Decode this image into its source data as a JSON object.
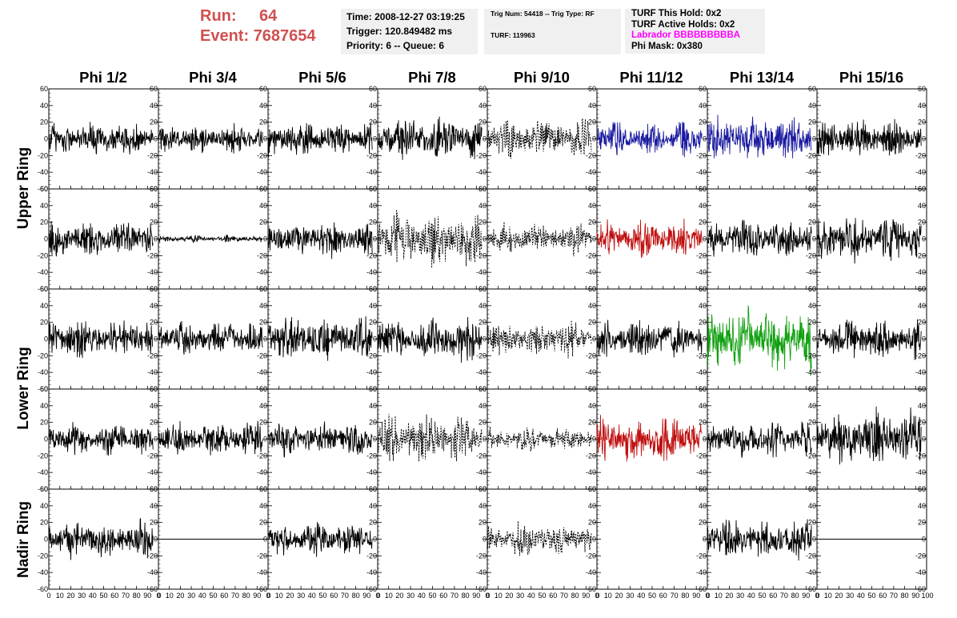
{
  "header": {
    "run_label": "Run:",
    "run_value": "64",
    "event_label": "Event:",
    "event_value": "7687654",
    "time": "Time: 2008-12-27 03:19:25",
    "trigger": "Trigger: 120.849482 ms",
    "priority": "Priority: 6 -- Queue: 6",
    "trig_num": "Trig Num: 54418 -- Trig Type: RF",
    "turf": "TURF: 119963",
    "turf_hold": "TURF This Hold: 0x2",
    "turf_active": "TURF Active Holds: 0x2",
    "labrador": "Labrador BBBBBBBBBA",
    "phi_mask": "Phi Mask: 0x380"
  },
  "colors": {
    "header_red": "#d05050",
    "labrador_magenta": "#ff00ff",
    "trace_black": "#000000",
    "trace_blue": "#1a1aa0",
    "trace_red": "#c01010",
    "trace_green": "#10a010"
  },
  "phi_columns": [
    "Phi 1/2",
    "Phi 3/4",
    "Phi 5/6",
    "Phi 7/8",
    "Phi 9/10",
    "Phi 11/12",
    "Phi 13/14",
    "Phi 15/16"
  ],
  "ring_labels": [
    {
      "label": "Upper Ring",
      "rows": [
        0,
        1
      ]
    },
    {
      "label": "Lower Ring",
      "rows": [
        2,
        3
      ]
    },
    {
      "label": "Nadir Ring",
      "rows": [
        4
      ]
    }
  ],
  "chart_data": {
    "type": "line",
    "title": "",
    "xlabel": "",
    "ylabel": "",
    "xlim": [
      0,
      100
    ],
    "ylim": [
      -60,
      60
    ],
    "y_ticks": [
      -60,
      -40,
      -20,
      0,
      20,
      40,
      60
    ],
    "x_ticks": [
      0,
      10,
      20,
      30,
      40,
      50,
      60,
      70,
      80,
      90
    ],
    "x_end_tick": 100,
    "grid": false,
    "trace_extent": [
      0,
      95
    ],
    "panels": [
      [
        {
          "style": "solid",
          "color": "black",
          "amp": 20
        },
        {
          "style": "solid",
          "color": "black",
          "amp": 16
        },
        {
          "style": "solid",
          "color": "black",
          "amp": 20
        },
        {
          "style": "solid",
          "color": "black",
          "amp": 24
        },
        {
          "style": "dashed",
          "color": "black",
          "amp": 22
        },
        {
          "style": "solid",
          "color": "blue",
          "amp": 20
        },
        {
          "style": "solid",
          "color": "blue",
          "amp": 26
        },
        {
          "style": "solid",
          "color": "black",
          "amp": 22
        }
      ],
      [
        {
          "style": "solid",
          "color": "black",
          "amp": 22
        },
        {
          "style": "solid",
          "color": "black",
          "amp": 4
        },
        {
          "style": "solid",
          "color": "black",
          "amp": 20
        },
        {
          "style": "dashed",
          "color": "black",
          "amp": 30
        },
        {
          "style": "dashed",
          "color": "black",
          "amp": 18
        },
        {
          "style": "solid",
          "color": "red",
          "amp": 22
        },
        {
          "style": "solid",
          "color": "black",
          "amp": 22
        },
        {
          "style": "solid",
          "color": "black",
          "amp": 26
        }
      ],
      [
        {
          "style": "solid",
          "color": "black",
          "amp": 22
        },
        {
          "style": "solid",
          "color": "black",
          "amp": 20
        },
        {
          "style": "solid",
          "color": "black",
          "amp": 24
        },
        {
          "style": "solid",
          "color": "black",
          "amp": 26
        },
        {
          "style": "dashed",
          "color": "black",
          "amp": 20
        },
        {
          "style": "solid",
          "color": "black",
          "amp": 22
        },
        {
          "style": "solid",
          "color": "green",
          "amp": 40
        },
        {
          "style": "solid",
          "color": "black",
          "amp": 22
        }
      ],
      [
        {
          "style": "solid",
          "color": "black",
          "amp": 18
        },
        {
          "style": "solid",
          "color": "black",
          "amp": 20
        },
        {
          "style": "solid",
          "color": "black",
          "amp": 18
        },
        {
          "style": "dashed",
          "color": "black",
          "amp": 28
        },
        {
          "style": "dashed",
          "color": "black",
          "amp": 14
        },
        {
          "style": "solid",
          "color": "red",
          "amp": 26
        },
        {
          "style": "solid",
          "color": "black",
          "amp": 22
        },
        {
          "style": "solid",
          "color": "black",
          "amp": 32
        }
      ],
      [
        {
          "style": "solid",
          "color": "black",
          "amp": 22
        },
        {
          "style": "flat",
          "color": "black",
          "amp": 0
        },
        {
          "style": "solid",
          "color": "black",
          "amp": 20
        },
        {
          "style": "none",
          "color": "black",
          "amp": 0
        },
        {
          "style": "dashed",
          "color": "black",
          "amp": 18
        },
        {
          "style": "none",
          "color": "black",
          "amp": 0
        },
        {
          "style": "solid",
          "color": "black",
          "amp": 22
        },
        {
          "style": "flat",
          "color": "black",
          "amp": 0
        }
      ]
    ]
  }
}
